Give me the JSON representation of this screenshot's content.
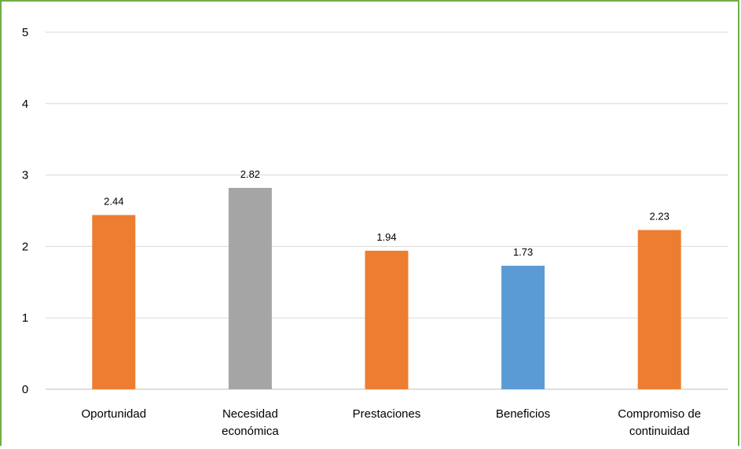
{
  "chart_data": {
    "type": "bar",
    "categories": [
      [
        "Oportunidad"
      ],
      [
        "Necesidad",
        "económica"
      ],
      [
        "Prestaciones"
      ],
      [
        "Beneficios"
      ],
      [
        "Compromiso de",
        "continuidad"
      ]
    ],
    "values": [
      2.44,
      2.82,
      1.94,
      1.73,
      2.23
    ],
    "data_labels": [
      "2.44",
      "2.82",
      "1.94",
      "1.73",
      "2.23"
    ],
    "bar_colors": [
      "#ed7d31",
      "#a5a5a5",
      "#ed7d31",
      "#5b9bd5",
      "#ed7d31"
    ],
    "y_ticks": [
      "0",
      "1",
      "2",
      "3",
      "4",
      "5"
    ],
    "ylim": [
      0,
      5
    ],
    "grid": true,
    "legend": "none",
    "title": "",
    "xlabel": "",
    "ylabel": ""
  },
  "colors": {
    "frame_border": "#70ad47",
    "gridline": "#d9d9d9"
  }
}
